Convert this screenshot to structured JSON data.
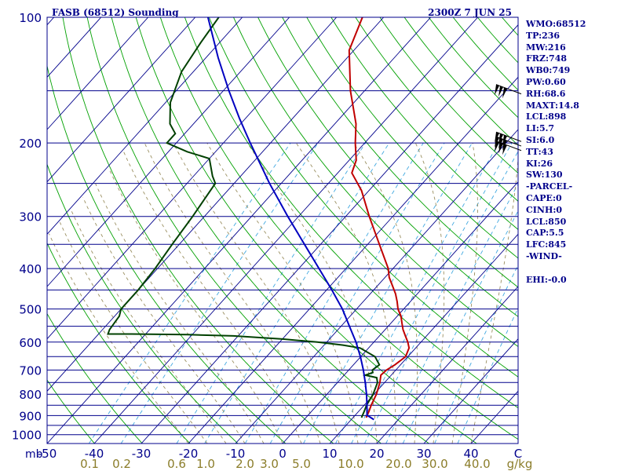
{
  "header": {
    "title": "FASB (68512) Sounding",
    "valid_time": "2300Z  7 JUN 25"
  },
  "indices": [
    "WMO:68512",
    "TP:236",
    "MW:216",
    "FRZ:748",
    "WB0:749",
    "PW:0.60",
    "RH:68.6",
    "MAXT:14.8",
    "LCL:898",
    "LI:5.7",
    "SI:6.0",
    "TT:43",
    "KI:26",
    "SW:130",
    "-PARCEL-",
    "CAPE:0",
    "CINH:0",
    "LCL:850",
    "CAP:5.5",
    "LFC:845",
    "-WIND-",
    "",
    "EHI:-0.0"
  ],
  "colors": {
    "isobar": "#00008b",
    "isotherm": "#00008b",
    "dry_adiabat": "#00a000",
    "moist_adiabat": "#9a8f60",
    "mixing_ratio": "#40a8e0",
    "temperature": "#c00000",
    "dewpoint": "#004000",
    "parcel": "#0000c0",
    "text": "#00008b",
    "mixing_ratio_labels": "#8b7d2a"
  },
  "chart_data": {
    "type": "line",
    "subtype": "skew-T log-P sounding",
    "pressure_unit": "mb",
    "pressure_ticks": [
      100,
      200,
      300,
      400,
      500,
      600,
      700,
      800,
      900,
      1000
    ],
    "pressure_range": [
      100,
      1050
    ],
    "temperature_ticks": [
      "-50",
      "-40",
      "-30",
      "-20",
      "-10",
      "0",
      "10",
      "20",
      "30",
      "40",
      "C"
    ],
    "temperature_unit": "C",
    "temperature_range_at_bottom": [
      -50,
      50
    ],
    "mixing_ratio_unit": "g/kg",
    "mixing_ratio_ticks": [
      "0.1",
      "0.2",
      "0.6",
      "1.0",
      "2.0",
      "3.0",
      "5.0",
      "10.0",
      "20.0",
      "30.0",
      "40.0"
    ],
    "series": [
      {
        "key": "temperature",
        "points": [
          [
            910,
            12.8
          ],
          [
            880,
            12.2
          ],
          [
            850,
            11.5
          ],
          [
            800,
            10.5
          ],
          [
            750,
            9.0
          ],
          [
            720,
            7.8
          ],
          [
            700,
            8.0
          ],
          [
            680,
            8.8
          ],
          [
            650,
            9.5
          ],
          [
            620,
            8.6
          ],
          [
            600,
            7.2
          ],
          [
            580,
            5.5
          ],
          [
            560,
            3.8
          ],
          [
            540,
            2.3
          ],
          [
            520,
            0.8
          ],
          [
            500,
            -1.2
          ],
          [
            480,
            -2.8
          ],
          [
            460,
            -4.6
          ],
          [
            440,
            -6.8
          ],
          [
            420,
            -9.1
          ],
          [
            400,
            -11.0
          ],
          [
            350,
            -17.5
          ],
          [
            300,
            -25.0
          ],
          [
            260,
            -31.6
          ],
          [
            236,
            -37.0
          ],
          [
            220,
            -38.5
          ],
          [
            200,
            -42.0
          ],
          [
            180,
            -45.5
          ],
          [
            150,
            -53.0
          ],
          [
            120,
            -61.0
          ],
          [
            100,
            -64.5
          ]
        ]
      },
      {
        "key": "dewpoint",
        "points": [
          [
            910,
            11.8
          ],
          [
            880,
            11.2
          ],
          [
            850,
            10.5
          ],
          [
            800,
            9.8
          ],
          [
            750,
            8.5
          ],
          [
            730,
            7.4
          ],
          [
            720,
            4.5
          ],
          [
            710,
            5.6
          ],
          [
            700,
            5.0
          ],
          [
            680,
            5.5
          ],
          [
            650,
            3.0
          ],
          [
            620,
            -1.8
          ],
          [
            610,
            -6.0
          ],
          [
            600,
            -12.0
          ],
          [
            590,
            -20.0
          ],
          [
            580,
            -31.0
          ],
          [
            576,
            -41.0
          ],
          [
            574,
            -53.0
          ],
          [
            574,
            -58.0
          ],
          [
            560,
            -58.5
          ],
          [
            520,
            -59.0
          ],
          [
            500,
            -60.0
          ],
          [
            450,
            -60.0
          ],
          [
            400,
            -60.5
          ],
          [
            350,
            -61.5
          ],
          [
            300,
            -62.5
          ],
          [
            250,
            -64.0
          ],
          [
            240,
            -66.0
          ],
          [
            218,
            -70.0
          ],
          [
            210,
            -76.0
          ],
          [
            200,
            -82.0
          ],
          [
            190,
            -82.0
          ],
          [
            180,
            -85.0
          ],
          [
            160,
            -89.0
          ],
          [
            135,
            -92.5
          ],
          [
            115,
            -94.0
          ],
          [
            100,
            -95.0
          ]
        ]
      },
      {
        "key": "parcel",
        "points": [
          [
            920,
            14.8
          ],
          [
            898,
            12.5
          ],
          [
            850,
            10.6
          ],
          [
            800,
            8.4
          ],
          [
            750,
            5.9
          ],
          [
            700,
            3.1
          ],
          [
            650,
            -0.1
          ],
          [
            600,
            -3.8
          ],
          [
            550,
            -8.2
          ],
          [
            500,
            -13.0
          ],
          [
            450,
            -18.9
          ],
          [
            400,
            -25.7
          ],
          [
            350,
            -33.4
          ],
          [
            300,
            -42.3
          ],
          [
            250,
            -52.5
          ],
          [
            200,
            -64.3
          ],
          [
            175,
            -71.2
          ],
          [
            150,
            -78.8
          ],
          [
            125,
            -87.4
          ],
          [
            100,
            -97.3
          ]
        ]
      }
    ],
    "wind_barbs": [
      {
        "pressure": 150
      },
      {
        "pressure": 195
      },
      {
        "pressure": 200
      },
      {
        "pressure": 205
      }
    ]
  }
}
